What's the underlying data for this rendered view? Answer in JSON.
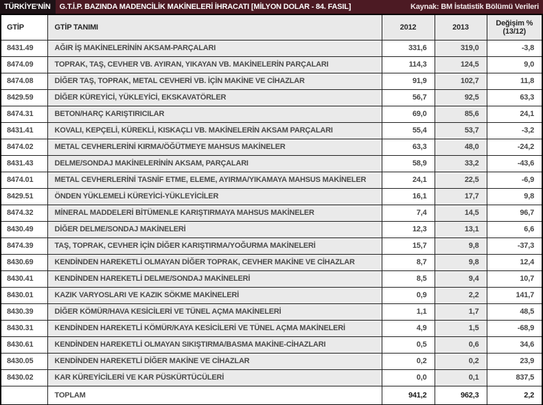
{
  "title_bar": {
    "badge": "TÜRKİYE'NİN",
    "title": "G.T.İ.P. BAZINDA MADENCİLİK MAKİNELERİ İHRACATI [MİLYON DOLAR - 84. FASIL]",
    "source": "Kaynak: BM İstatistik Bölümü Verileri"
  },
  "table": {
    "columns": [
      "GTİP",
      "GTİP TANIMI",
      "2012",
      "2013",
      "Değişim %\n(13/12)"
    ],
    "rows": [
      {
        "code": "8431.49",
        "desc": "AĞIR İŞ MAKİNELERİNİN AKSAM-PARÇALARI",
        "v2012": "331,6",
        "v2013": "319,0",
        "change": "-3,8"
      },
      {
        "code": "8474.09",
        "desc": "TOPRAK, TAŞ, CEVHER VB. AYIRAN, YIKAYAN VB. MAKİNELERİN PARÇALARI",
        "v2012": "114,3",
        "v2013": "124,5",
        "change": "9,0"
      },
      {
        "code": "8474.08",
        "desc": "DİĞER TAŞ, TOPRAK, METAL CEVHERİ VB. İÇİN MAKİNE VE CİHAZLAR",
        "v2012": "91,9",
        "v2013": "102,7",
        "change": "11,8"
      },
      {
        "code": "8429.59",
        "desc": "DİĞER KÜREYİCİ, YÜKLEYİCİ, EKSKAVATÖRLER",
        "v2012": "56,7",
        "v2013": "92,5",
        "change": "63,3"
      },
      {
        "code": "8474.31",
        "desc": "BETON/HARÇ KARIŞTIRICILAR",
        "v2012": "69,0",
        "v2013": "85,6",
        "change": "24,1"
      },
      {
        "code": "8431.41",
        "desc": "KOVALI, KEPÇELİ, KÜREKLİ, KISKAÇLI VB. MAKİNELERİN AKSAM PARÇALARI",
        "v2012": "55,4",
        "v2013": "53,7",
        "change": "-3,2"
      },
      {
        "code": "8474.02",
        "desc": "METAL CEVHERLERİNİ KIRMA/ÖĞÜTMEYE MAHSUS MAKİNELER",
        "v2012": "63,3",
        "v2013": "48,0",
        "change": "-24,2"
      },
      {
        "code": "8431.43",
        "desc": "DELME/SONDAJ MAKİNELERİNİN AKSAM, PARÇALARI",
        "v2012": "58,9",
        "v2013": "33,2",
        "change": "-43,6"
      },
      {
        "code": "8474.01",
        "desc": "METAL CEVHERLERİNİ TASNİF ETME, ELEME, AYIRMA/YIKAMAYA MAHSUS MAKİNELER",
        "v2012": "24,1",
        "v2013": "22,5",
        "change": "-6,9"
      },
      {
        "code": "8429.51",
        "desc": "ÖNDEN YÜKLEMELİ KÜREYİCİ-YÜKLEYİCİLER",
        "v2012": "16,1",
        "v2013": "17,7",
        "change": "9,8"
      },
      {
        "code": "8474.32",
        "desc": "MİNERAL MADDELERİ BİTÜMENLE KARIŞTIRMAYA MAHSUS MAKİNELER",
        "v2012": "7,4",
        "v2013": "14,5",
        "change": "96,7"
      },
      {
        "code": "8430.49",
        "desc": "DİĞER DELME/SONDAJ MAKİNELERİ",
        "v2012": "12,3",
        "v2013": "13,1",
        "change": "6,6"
      },
      {
        "code": "8474.39",
        "desc": "TAŞ, TOPRAK, CEVHER İÇİN DİĞER KARIŞTIRMA/YOĞURMA MAKİNELERİ",
        "v2012": "15,7",
        "v2013": "9,8",
        "change": "-37,3"
      },
      {
        "code": "8430.69",
        "desc": "KENDİNDEN HAREKETLİ OLMAYAN DİĞER TOPRAK, CEVHER MAKİNE VE CİHAZLAR",
        "v2012": "8,7",
        "v2013": "9,8",
        "change": "12,4"
      },
      {
        "code": "8430.41",
        "desc": "KENDİNDEN HAREKETLİ DELME/SONDAJ MAKİNELERİ",
        "v2012": "8,5",
        "v2013": "9,4",
        "change": "10,7"
      },
      {
        "code": "8430.01",
        "desc": "KAZIK VARYOSLARI VE KAZIK SÖKME MAKİNELERİ",
        "v2012": "0,9",
        "v2013": "2,2",
        "change": "141,7"
      },
      {
        "code": "8430.39",
        "desc": "DİĞER KÖMÜR/HAVA KESİCİLERİ VE TÜNEL AÇMA MAKİNELERİ",
        "v2012": "1,1",
        "v2013": "1,7",
        "change": "48,5"
      },
      {
        "code": "8430.31",
        "desc": "KENDİNDEN HAREKETLİ KÖMÜR/KAYA KESİCİLERİ VE TÜNEL AÇMA MAKİNELERİ",
        "v2012": "4,9",
        "v2013": "1,5",
        "change": "-68,9"
      },
      {
        "code": "8430.61",
        "desc": "KENDİNDEN HAREKETLİ OLMAYAN SIKIŞTIRMA/BASMA MAKİNE-CİHAZLARI",
        "v2012": "0,5",
        "v2013": "0,6",
        "change": "34,6"
      },
      {
        "code": "8430.05",
        "desc": "KENDİNDEN HAREKETLİ DİĞER MAKİNE VE CİHAZLAR",
        "v2012": "0,2",
        "v2013": "0,2",
        "change": "23,9"
      },
      {
        "code": "8430.02",
        "desc": "KAR KÜREYİCİLERİ VE KAR PÜSKÜRTÜCÜLERİ",
        "v2012": "0,0",
        "v2013": "0,1",
        "change": "837,5"
      }
    ],
    "total": {
      "label": "TOPLAM",
      "v2012": "941,2",
      "v2013": "962,3",
      "change": "2,2"
    }
  },
  "colors": {
    "title_bar_bg": "#4c1a23",
    "title_badge_bg": "#1d1216",
    "title_text": "#ffffff",
    "cell_gray": "#eaeaea",
    "cell_white": "#ffffff",
    "border": "#1f1f1f",
    "body_text": "#454545"
  }
}
